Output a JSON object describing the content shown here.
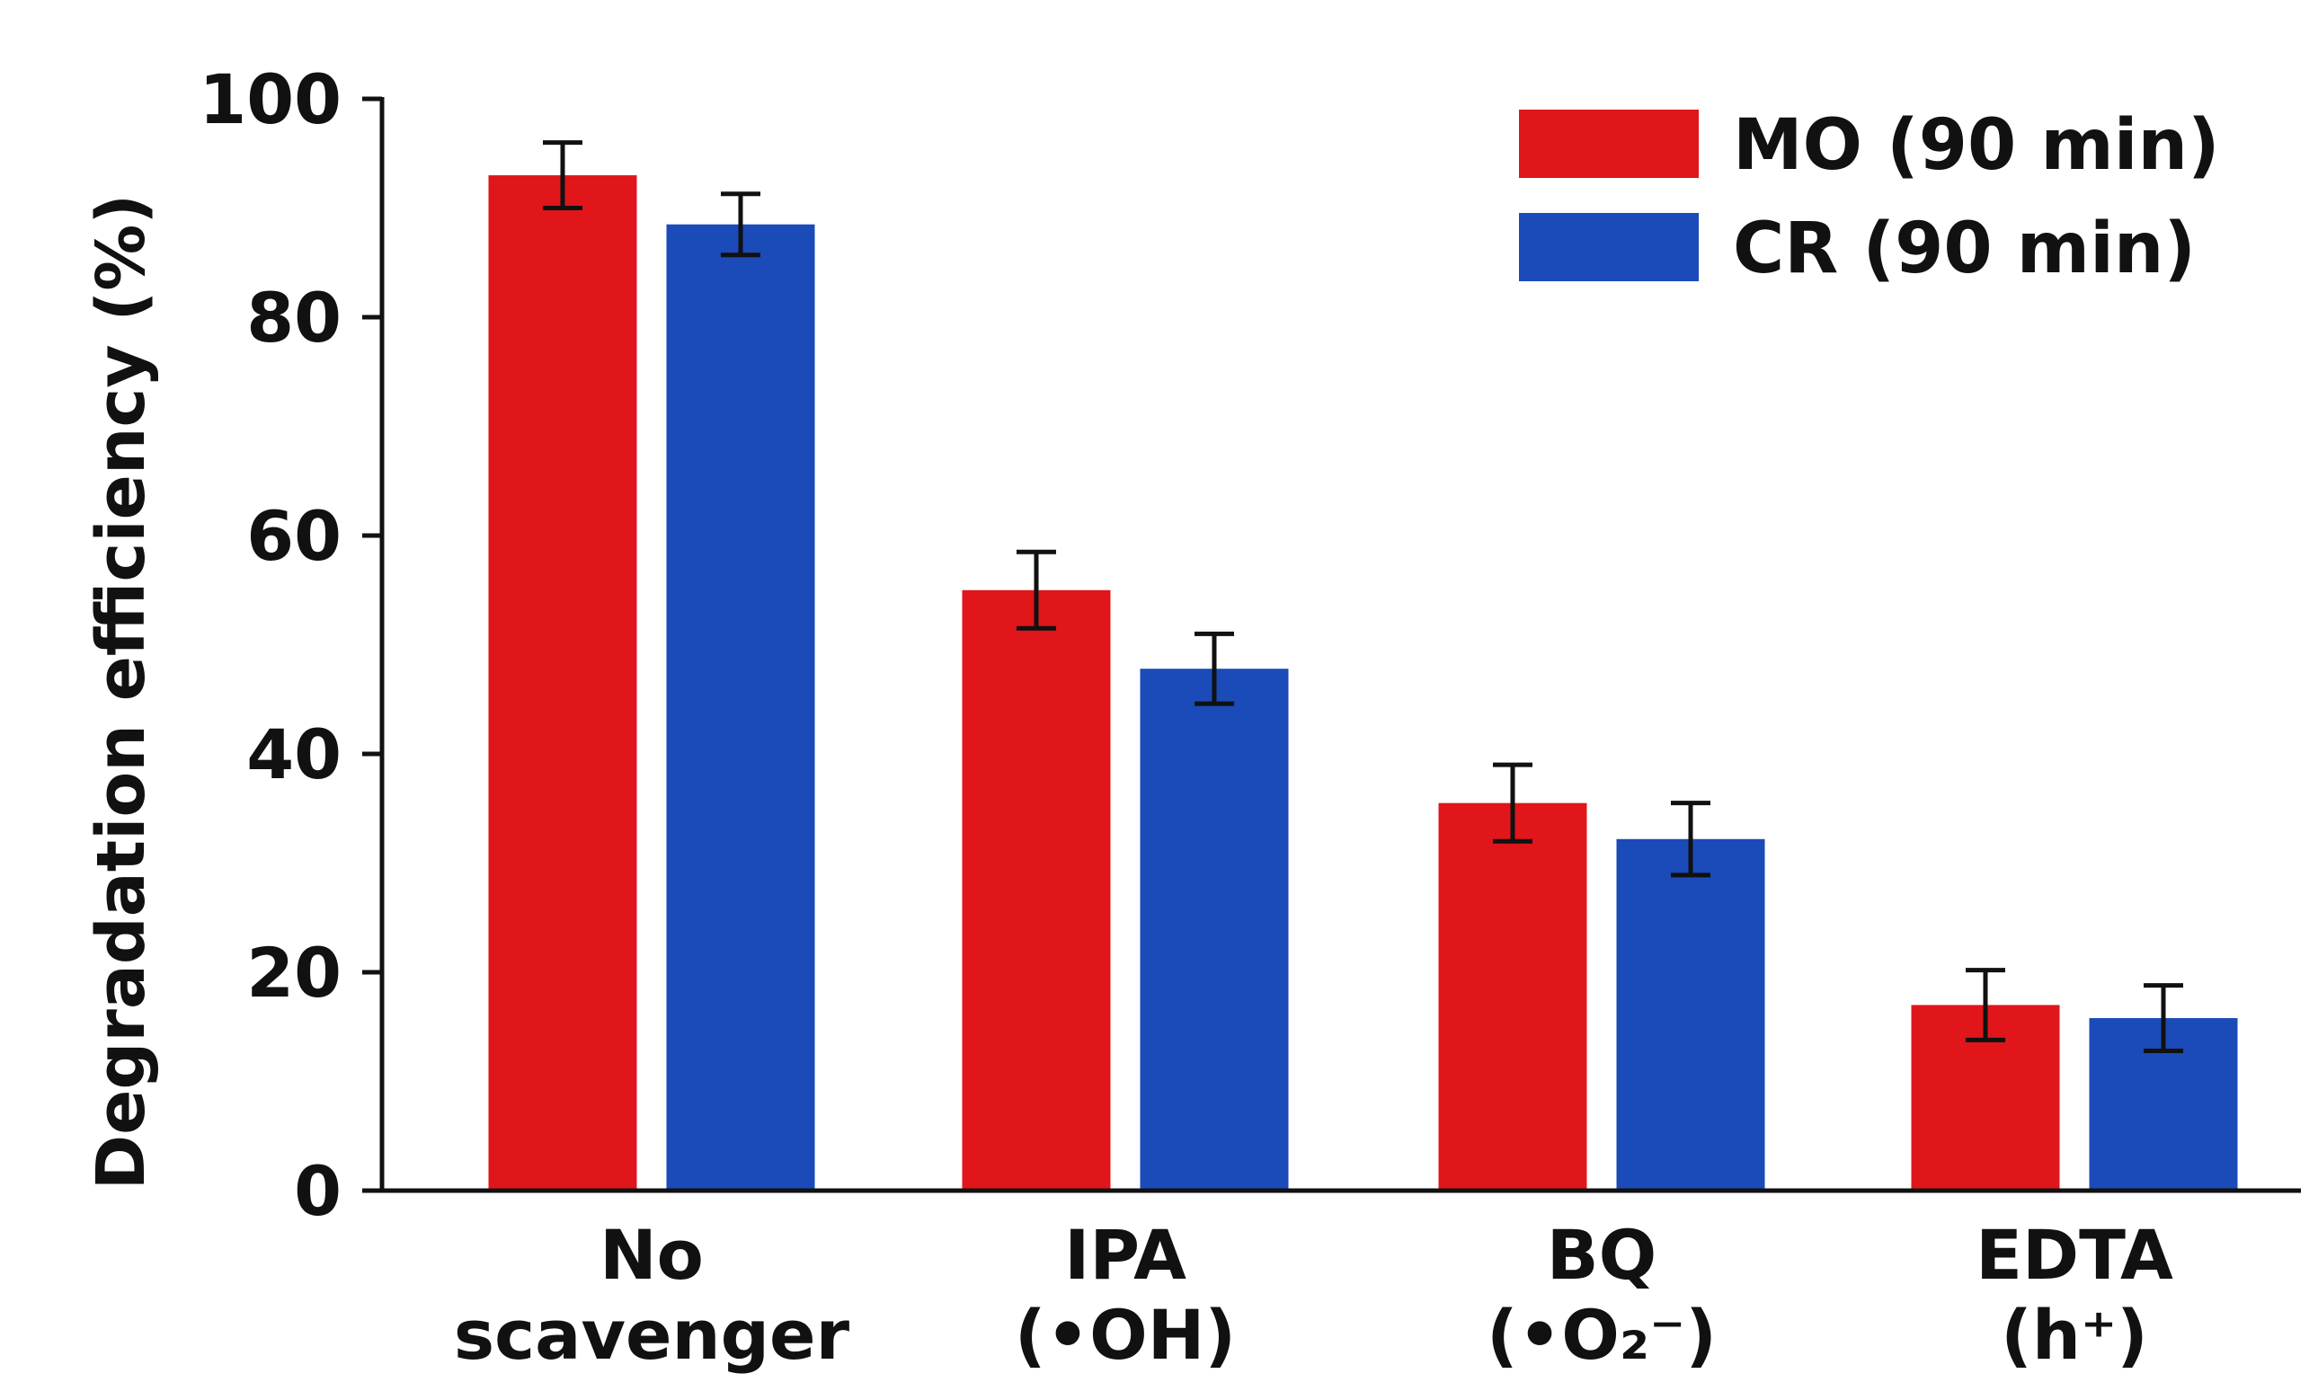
{
  "chart_data": {
    "type": "bar",
    "title": "",
    "xlabel": "",
    "ylabel": "Degradation efficiency (%)",
    "ylim": [
      0,
      100
    ],
    "yticks": [
      0,
      20,
      40,
      60,
      80,
      100
    ],
    "grid": false,
    "legend_position": "top-right",
    "categories": [
      {
        "line1": "No",
        "line2": "scavenger"
      },
      {
        "line1": "IPA",
        "line2": "(•OH)"
      },
      {
        "line1": "BQ",
        "line2": "(•O₂⁻)"
      },
      {
        "line1": "EDTA",
        "line2": "(h⁺)"
      }
    ],
    "series": [
      {
        "name": "MO (90 min)",
        "color": "#e0161b",
        "values": [
          93,
          55,
          35.5,
          17
        ],
        "errors": [
          3,
          3.5,
          3.5,
          3.2
        ]
      },
      {
        "name": "CR (90 min)",
        "color": "#1a4bb8",
        "values": [
          88.5,
          47.8,
          32.2,
          15.8
        ],
        "errors": [
          2.8,
          3.2,
          3.3,
          3
        ]
      }
    ]
  }
}
